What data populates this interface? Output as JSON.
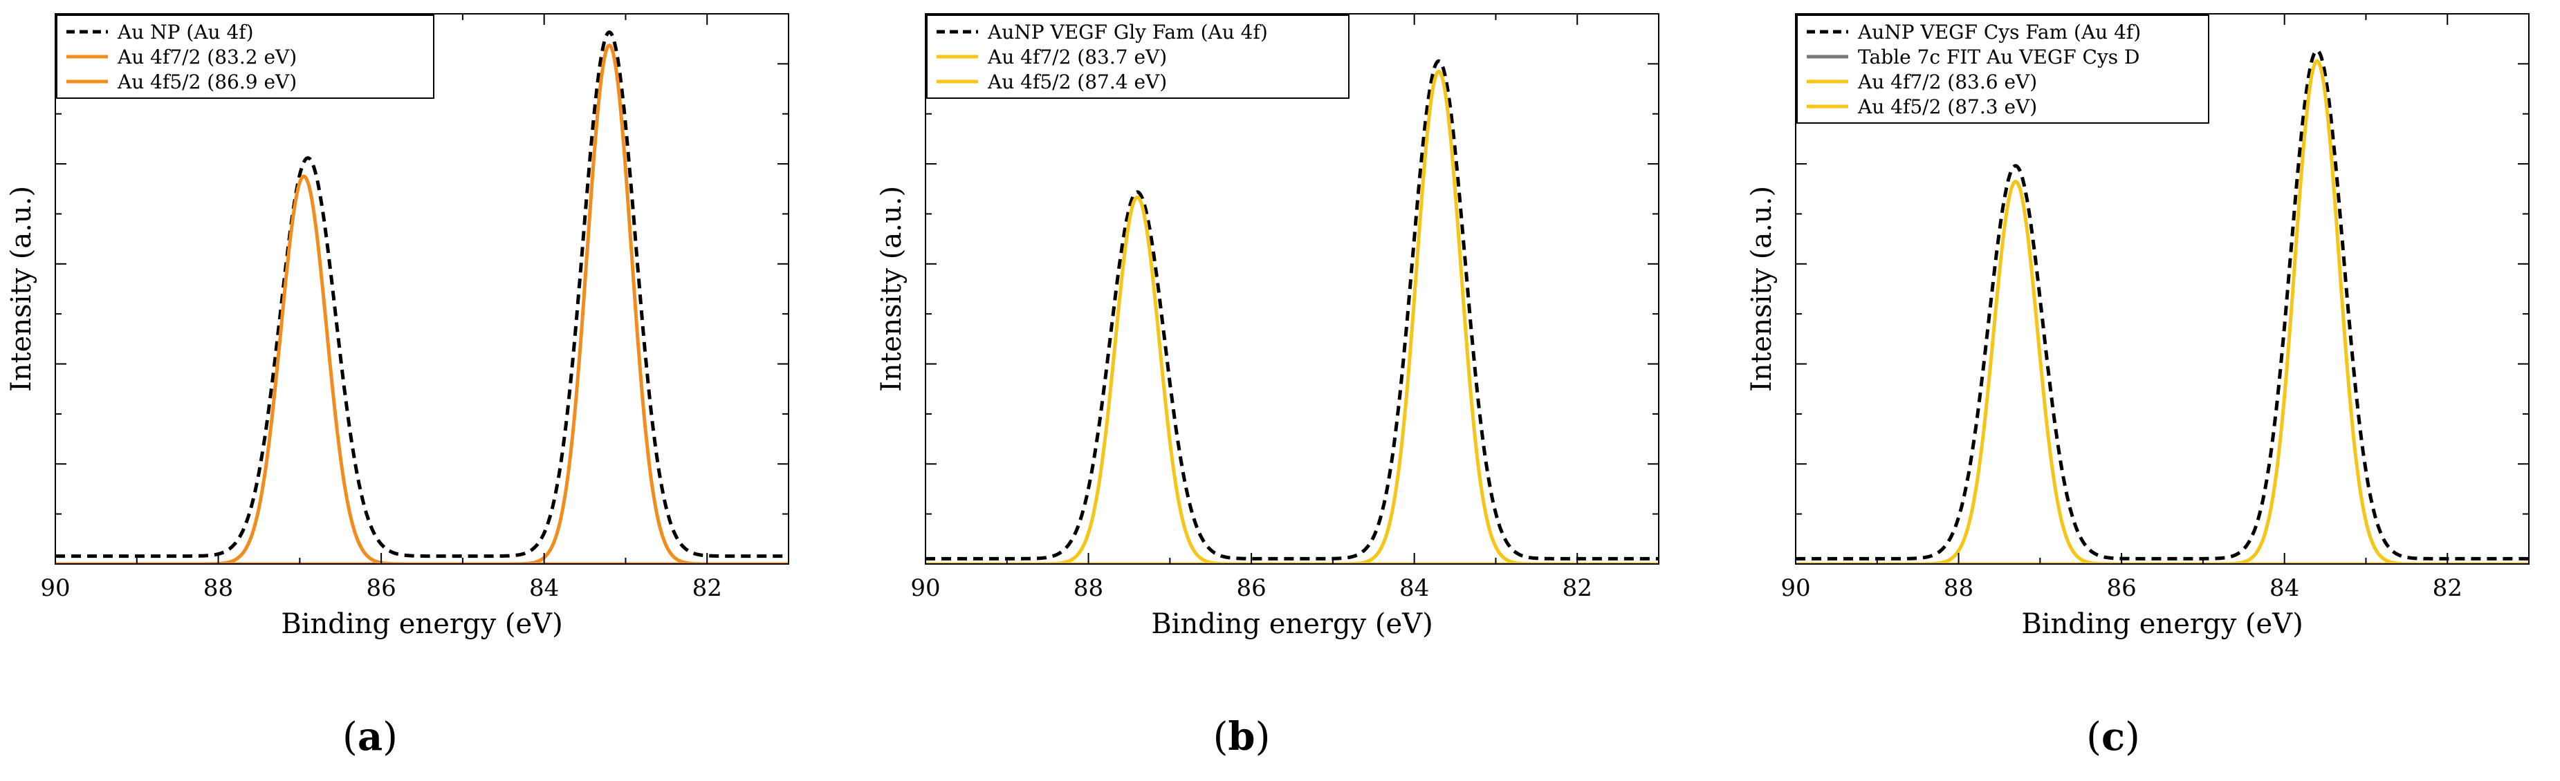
{
  "chart_data": [
    {
      "type": "line",
      "panel_label": "(a)",
      "panel_label_parts": {
        "open": "(",
        "letter": "a",
        "close": ")"
      },
      "xlabel": "Binding energy (eV)",
      "ylabel": "Intensity (a.u.)",
      "xlim": [
        90,
        81
      ],
      "xticks": [
        90,
        88,
        86,
        84,
        82
      ],
      "ylim": [
        0,
        1.05
      ],
      "legend_position": "top-left",
      "series": [
        {
          "name": "Au NP (Au 4f)",
          "style": "dashed",
          "color": "#000000",
          "background": 0.015,
          "peaks": [
            {
              "center": 83.2,
              "height": 1.0,
              "width": 0.32
            },
            {
              "center": 86.9,
              "height": 0.76,
              "width": 0.34
            }
          ]
        },
        {
          "name": "Au 4f7/2 (83.2 eV)",
          "style": "solid",
          "color": "#f28c1c",
          "background": 0,
          "peaks": [
            {
              "center": 83.2,
              "height": 0.99,
              "width": 0.27
            }
          ]
        },
        {
          "name": "Au 4f5/2 (86.9 eV)",
          "style": "solid",
          "color": "#f28c1c",
          "background": 0,
          "peaks": [
            {
              "center": 86.95,
              "height": 0.74,
              "width": 0.28
            }
          ]
        }
      ]
    },
    {
      "type": "line",
      "panel_label": "(b)",
      "panel_label_parts": {
        "open": "(",
        "letter": "b",
        "close": ")"
      },
      "xlabel": "Binding energy (eV)",
      "ylabel": "Intensity (a.u.)",
      "xlim": [
        90,
        81
      ],
      "xticks": [
        90,
        88,
        86,
        84,
        82
      ],
      "ylim": [
        0,
        1.05
      ],
      "legend_position": "top-left",
      "series": [
        {
          "name": "AuNP VEGF Gly Fam (Au 4f)",
          "style": "dashed",
          "color": "#000000",
          "background": 0.01,
          "peaks": [
            {
              "center": 83.7,
              "height": 0.95,
              "width": 0.32
            },
            {
              "center": 87.4,
              "height": 0.7,
              "width": 0.33
            }
          ]
        },
        {
          "name": "Au 4f7/2 (83.7 eV)",
          "style": "solid",
          "color": "#f5c518",
          "background": 0,
          "peaks": [
            {
              "center": 83.7,
              "height": 0.94,
              "width": 0.27
            }
          ]
        },
        {
          "name": "Au 4f5/2 (87.4 eV)",
          "style": "solid",
          "color": "#f5c518",
          "background": 0,
          "peaks": [
            {
              "center": 87.4,
              "height": 0.7,
              "width": 0.27
            }
          ]
        }
      ]
    },
    {
      "type": "line",
      "panel_label": "(c)",
      "panel_label_parts": {
        "open": "(",
        "letter": "c",
        "close": ")"
      },
      "xlabel": "Binding energy (eV)",
      "ylabel": "Intensity (a.u.)",
      "xlim": [
        90,
        81
      ],
      "xticks": [
        90,
        88,
        86,
        84,
        82
      ],
      "ylim": [
        0,
        1.05
      ],
      "legend_position": "top-left",
      "series": [
        {
          "name": "AuNP VEGF Cys Fam (Au 4f)",
          "style": "dashed",
          "color": "#000000",
          "background": 0.01,
          "peaks": [
            {
              "center": 83.6,
              "height": 0.97,
              "width": 0.32
            },
            {
              "center": 87.3,
              "height": 0.75,
              "width": 0.33
            }
          ]
        },
        {
          "name": "Table 7c FIT Au VEGF Cys D",
          "style": "solid",
          "color": "#777777",
          "background": 0,
          "peaks": []
        },
        {
          "name": "Au 4f7/2 (83.6 eV)",
          "style": "solid",
          "color": "#f5c518",
          "background": 0,
          "peaks": [
            {
              "center": 83.6,
              "height": 0.96,
              "width": 0.27
            }
          ]
        },
        {
          "name": "Au 4f5/2 (87.3 eV)",
          "style": "solid",
          "color": "#f5c518",
          "background": 0,
          "peaks": [
            {
              "center": 87.3,
              "height": 0.73,
              "width": 0.27
            }
          ]
        }
      ]
    }
  ]
}
